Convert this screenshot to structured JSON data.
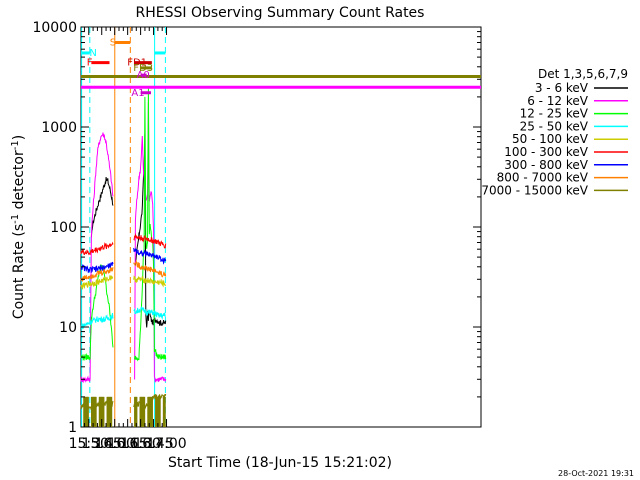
{
  "chart_data": {
    "type": "line",
    "title": "RHESSI Observing Summary Count Rates",
    "xlabel": "Start Time (18-Jun-15 15:21:02)",
    "ylabel": "Count Rate (s⁻¹ detector⁻¹)",
    "ylabel_parts": [
      "Count Rate (s",
      "-1",
      " detector",
      "-1",
      ")"
    ],
    "yscale": "log",
    "ylim": [
      1,
      10000
    ],
    "xlim_min": [
      921,
      1384
    ],
    "x_ticks": [
      {
        "m": 930,
        "label": "15:30"
      },
      {
        "m": 945,
        "label": "15:45"
      },
      {
        "m": 960,
        "label": "16:00"
      },
      {
        "m": 975,
        "label": "16:15"
      },
      {
        "m": 990,
        "label": "16:30"
      },
      {
        "m": 1005,
        "label": "16:45"
      },
      {
        "m": 1020,
        "label": "17:00"
      }
    ],
    "y_ticks": [
      {
        "v": 1,
        "label": "1"
      },
      {
        "v": 10,
        "label": "10"
      },
      {
        "v": 100,
        "label": "100"
      },
      {
        "v": 1000,
        "label": "1000"
      },
      {
        "v": 10000,
        "label": "10000"
      }
    ],
    "legend_title": "Det 1,3,5,6,7,9",
    "legend_position": "right",
    "timestamp": "28-Oct-2021 19:31",
    "data_gaps_min": [
      [
        958,
        983
      ]
    ],
    "series": [
      {
        "name": "3 - 6 keV",
        "color": "#000000",
        "x": [
          921,
          925,
          928,
          930,
          931.5,
          933,
          934,
          936,
          938,
          940,
          942,
          944,
          946,
          948,
          950,
          952,
          954,
          956,
          958,
          982,
          983,
          984,
          986,
          988,
          990,
          992,
          993,
          994,
          995,
          996,
          997,
          998,
          999,
          1000,
          1001,
          1002,
          1004,
          1008,
          1012,
          1016,
          1019
        ],
        "y": [
          null,
          null,
          null,
          null,
          null,
          75,
          100,
          120,
          140,
          160,
          185,
          205,
          235,
          265,
          295,
          290,
          250,
          210,
          170,
          null,
          null,
          40,
          60,
          80,
          110,
          150,
          280,
          400,
          800,
          13,
          10,
          14,
          12,
          15,
          13,
          12,
          11,
          12,
          11,
          11,
          11
        ]
      },
      {
        "name": "6 - 12 keV",
        "color": "#ff00ff",
        "x": [
          921,
          925,
          928,
          930,
          931.5,
          933,
          934,
          936,
          938,
          940,
          942,
          944,
          946,
          948,
          950,
          952,
          954,
          956,
          958,
          982,
          983,
          984,
          986,
          988,
          990,
          992,
          993,
          994,
          995,
          996,
          997,
          998,
          999,
          1000,
          1001,
          1002,
          1003,
          1004,
          1005,
          1006,
          1010,
          1014,
          1019
        ],
        "y": [
          3,
          3,
          3,
          3,
          3,
          80,
          120,
          200,
          350,
          550,
          700,
          800,
          850,
          820,
          700,
          550,
          400,
          300,
          200,
          3,
          3,
          120,
          200,
          300,
          400,
          800,
          400,
          300,
          250,
          200,
          180,
          220,
          1800,
          180,
          200,
          230,
          200,
          180,
          90,
          3,
          3,
          3,
          3
        ]
      },
      {
        "name": "12 - 25 keV",
        "color": "#00ff00",
        "x": [
          921,
          925,
          928,
          930,
          931.5,
          933,
          934,
          936,
          938,
          940,
          942,
          944,
          946,
          948,
          950,
          952,
          954,
          956,
          958,
          982,
          983,
          984,
          986,
          988,
          990,
          992,
          993,
          994,
          995,
          996,
          997,
          998,
          999,
          1000,
          1001,
          1002,
          1003,
          1004,
          1005,
          1006,
          1010,
          1014,
          1019
        ],
        "y": [
          5,
          5,
          5,
          5,
          5,
          12,
          14,
          18,
          22,
          28,
          35,
          40,
          40,
          35,
          25,
          20,
          15,
          10,
          6,
          5,
          5,
          5,
          5,
          5,
          10,
          25,
          45,
          60,
          2000,
          80,
          60,
          70,
          2500,
          90,
          110,
          90,
          80,
          70,
          40,
          6,
          5,
          5,
          5
        ]
      },
      {
        "name": "25 - 50 keV",
        "color": "#00ffff",
        "x": [
          921,
          930,
          940,
          950,
          958,
          982,
          990,
          1000,
          1005,
          1010,
          1019
        ],
        "y": [
          10,
          11,
          12,
          12,
          13,
          14,
          15,
          14,
          14,
          13,
          13
        ]
      },
      {
        "name": "50 - 100 keV",
        "color": "#cccc00",
        "x": [
          921,
          930,
          940,
          950,
          958,
          982,
          990,
          1000,
          1005,
          1010,
          1019
        ],
        "y": [
          25,
          27,
          28,
          30,
          32,
          30,
          30,
          29,
          28,
          28,
          27
        ]
      },
      {
        "name": "100 - 300 keV",
        "color": "#ff0000",
        "x": [
          921,
          930,
          940,
          950,
          958,
          982,
          990,
          1000,
          1005,
          1010,
          1019
        ],
        "y": [
          57,
          55,
          60,
          64,
          68,
          80,
          78,
          75,
          73,
          70,
          65
        ]
      },
      {
        "name": "300 - 800 keV",
        "color": "#0000ff",
        "x": [
          921,
          930,
          940,
          950,
          958,
          982,
          990,
          1000,
          1005,
          1010,
          1019
        ],
        "y": [
          40,
          37,
          38,
          40,
          42,
          60,
          55,
          53,
          52,
          50,
          45
        ]
      },
      {
        "name": "800 - 7000 keV",
        "color": "#ff8000",
        "x": [
          921,
          930,
          940,
          950,
          958,
          982,
          990,
          1000,
          1005,
          1010,
          1019
        ],
        "y": [
          30,
          32,
          34,
          36,
          38,
          45,
          40,
          38,
          37,
          35,
          33
        ]
      },
      {
        "name": "7000 - 15000 keV",
        "color": "#808000",
        "x": [
          921,
          925,
          930,
          931.5,
          940,
          950,
          958,
          982,
          990,
          1000,
          1005,
          1010,
          1019
        ],
        "y": [
          1.6,
          1.6,
          1.6,
          1.6,
          1.7,
          1.7,
          1.7,
          1.7,
          1.7,
          1.6,
          2,
          2,
          2
        ]
      }
    ],
    "bands": [
      {
        "label": "N",
        "color": "#00ffff",
        "y": 5500,
        "x0": 921,
        "x1": 931.2,
        "label_at": 935
      },
      {
        "label": "N",
        "color": "#00ffff",
        "y": 5500,
        "x0": 1006.2,
        "x1": 1018.7,
        "label_at": null
      },
      {
        "label": "F",
        "color": "#ff0000",
        "y": 4400,
        "x0": 933,
        "x1": 954,
        "label_at": 931
      },
      {
        "label": "S",
        "color": "#ff8000",
        "y": 7000,
        "x0": 960,
        "x1": 978,
        "label_at": 958
      },
      {
        "label": "FD1",
        "color": "#cc0000",
        "y": 4400,
        "x0": 983,
        "x1": 1003,
        "label_at": 986
      },
      {
        "label": "FD3",
        "color": "#808000",
        "y": 3900,
        "x0": 990,
        "x1": 1003,
        "label_at": 993
      },
      {
        "label": "A0",
        "color": "#cc00cc",
        "y": 3300,
        "x0": 990,
        "x1": 997,
        "label_at": 993
      },
      {
        "label": "A1",
        "color": "#cc00cc",
        "y": 2200,
        "x0": 990,
        "x1": 1002,
        "label_at": 987
      }
    ],
    "long_bands": [
      {
        "color": "#808000",
        "y": 3200
      },
      {
        "color": "#ff00ff",
        "y": 2500
      }
    ],
    "vlines": [
      {
        "m": 921.7,
        "color": "#00ffff",
        "dashed": false
      },
      {
        "m": 931.2,
        "color": "#00ffff",
        "dashed": true
      },
      {
        "m": 960.1,
        "color": "#ff8000",
        "dashed": false
      },
      {
        "m": 978.1,
        "color": "#ff8000",
        "dashed": true
      },
      {
        "m": 1006.2,
        "color": "#00ffff",
        "dashed": false
      },
      {
        "m": 1018.7,
        "color": "#00ffff",
        "dashed": true
      }
    ]
  }
}
